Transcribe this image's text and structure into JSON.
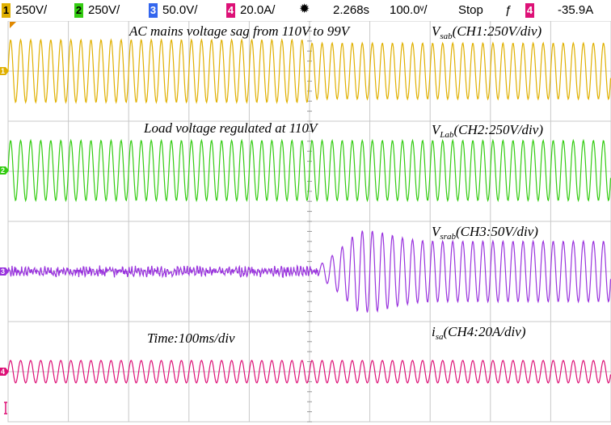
{
  "status": {
    "ch1_num": "1",
    "ch1_scale": "250V/",
    "ch2_num": "2",
    "ch2_scale": "250V/",
    "ch3_num": "3",
    "ch3_scale": "50.0V/",
    "ch4_num": "4",
    "ch4_scale": "20.0A/",
    "time_offset": "2.268s",
    "time_scale": "100.0ᵛ/",
    "run_state": "Stop",
    "trigger_symbol": "ƒ",
    "trigger_channel": "4",
    "trigger_level": "-35.9A"
  },
  "colors": {
    "ch1": "#e0b000",
    "ch2": "#33cc11",
    "ch3": "#9933dd",
    "ch4": "#dd1177",
    "grid": "#c8c8c8"
  },
  "icons": {
    "trigger_status": "acquire-star-icon",
    "trigger_slope": "falling-edge-trigger-icon"
  },
  "annotations": {
    "top_title": "AC mains  voltage sag from 110V to 99V",
    "ch1_prefix": "V",
    "ch1_sub": "sab",
    "ch1_rest": "(CH1:250V/div)",
    "ch2_title": "Load voltage regulated at 110V",
    "ch2_prefix": "V",
    "ch2_sub": "Lab",
    "ch2_rest": "(CH2:250V/div)",
    "ch3_prefix": "V",
    "ch3_sub": "srab",
    "ch3_rest": "(CH3:50V/div)",
    "time_label": "Time:100ms/div",
    "ch4_prefix": "i",
    "ch4_sub": "sa",
    "ch4_rest": "(CH4:20A/div)"
  },
  "chart_data": {
    "type": "line",
    "grid": true,
    "x_divisions": 10,
    "y_divisions": 8,
    "time_per_div_ms": 100,
    "sag_at_div": 5,
    "cycles_total": 60,
    "series": [
      {
        "name": "V_sab",
        "channel": 1,
        "amplitude_div_before": 1.25,
        "amplitude_div_after": 1.12
      },
      {
        "name": "V_Lab",
        "channel": 2,
        "amplitude_div_before": 1.2,
        "amplitude_div_after": 1.2
      },
      {
        "name": "V_srab",
        "channel": 3,
        "amplitude_div_before": 0.1,
        "amplitude_div_after": 1.1
      },
      {
        "name": "i_sa",
        "channel": 4,
        "amplitude_div_before": 0.45,
        "amplitude_div_after": 0.45
      }
    ]
  }
}
